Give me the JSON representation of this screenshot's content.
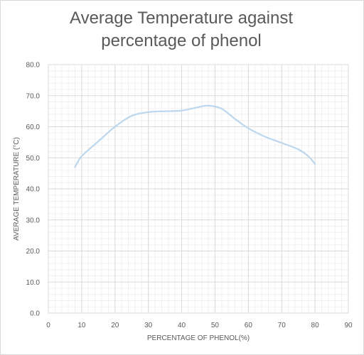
{
  "chart_data": {
    "type": "line",
    "title_lines": [
      "Average Temperature against",
      "percentage of phenol"
    ],
    "xlabel": "PERCENTAGE OF PHENOL(%)",
    "ylabel": "AVERAGE TEMPERATURE (°C)",
    "xlim": [
      0,
      90
    ],
    "ylim": [
      0,
      80
    ],
    "x_ticks": [
      0,
      10,
      20,
      30,
      40,
      50,
      60,
      70,
      80,
      90
    ],
    "y_ticks": [
      "0.0",
      "10.0",
      "20.0",
      "30.0",
      "40.0",
      "50.0",
      "60.0",
      "70.0",
      "80.0"
    ],
    "grid": true,
    "minor_grid": true,
    "line_color": "#bdd7ee",
    "series": [
      {
        "x": [
          8,
          10,
          15,
          20,
          25,
          30,
          35,
          40,
          45,
          48,
          52,
          56,
          60,
          65,
          70,
          75,
          78,
          80
        ],
        "values": [
          47.0,
          50.5,
          55.3,
          60.0,
          63.5,
          64.7,
          65.0,
          65.2,
          66.3,
          66.8,
          65.8,
          62.5,
          59.5,
          56.8,
          54.8,
          52.7,
          50.5,
          48.0
        ]
      }
    ]
  }
}
